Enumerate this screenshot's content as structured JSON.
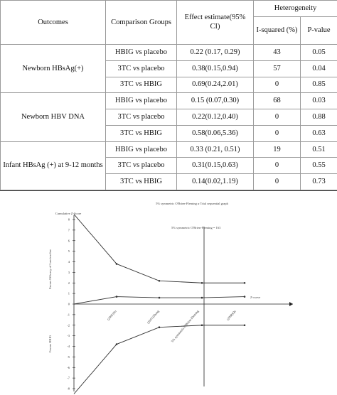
{
  "table": {
    "headers": {
      "outcomes": "Outcomes",
      "comparison": "Comparison Groups",
      "effect": "Effect estimate(95% CI)",
      "heterogeneity": "Heterogeneity",
      "i_squared": "I-squared (%)",
      "p_value": "P-value"
    },
    "groups": [
      {
        "outcome": "Newborn HBsAg(+)",
        "rows": [
          {
            "comparison": "HBIG vs placebo",
            "effect": "0.22 (0.17, 0.29)",
            "i2": "43",
            "p": "0.05"
          },
          {
            "comparison": "3TC vs placebo",
            "effect": "0.38(0.15,0.94)",
            "i2": "57",
            "p": "0.04"
          },
          {
            "comparison": "3TC vs HBIG",
            "effect": "0.69(0.24,2.01)",
            "i2": "0",
            "p": "0.85"
          }
        ]
      },
      {
        "outcome": "Newborn HBV DNA",
        "rows": [
          {
            "comparison": "HBIG vs placebo",
            "effect": "0.15 (0.07,0.30)",
            "i2": "68",
            "p": "0.03"
          },
          {
            "comparison": "3TC vs placebo",
            "effect": "0.22(0.12,0.40)",
            "i2": "0",
            "p": "0.88"
          },
          {
            "comparison": "3TC vs HBIG",
            "effect": "0.58(0.06,5.36)",
            "i2": "0",
            "p": "0.63"
          }
        ]
      },
      {
        "outcome": "Infant HBsAg (+) at 9-12 months",
        "rows": [
          {
            "comparison": "HBIG vs placebo",
            "effect": "0.33 (0.21, 0.51)",
            "i2": "19",
            "p": "0.51"
          },
          {
            "comparison": "3TC vs placebo",
            "effect": "0.31(0.15,0.63)",
            "i2": "0",
            "p": "0.55"
          },
          {
            "comparison": "3TC vs HBIG",
            "effect": "0.14(0.02,1.19)",
            "i2": "0",
            "p": "0.73"
          }
        ]
      }
    ]
  },
  "chart_data": {
    "type": "line",
    "title": "5% symmetric O'Brien-Fleming α Trial sequential graph",
    "ylabel": "Cumulative Z-Score",
    "upper_region_label": "Favors Efficacy of Lamivudine",
    "lower_region_label": "Favors HBIG",
    "boundary_label": "5% symmetric O'Brien-Fleming = 163",
    "z_curve_label": "Z-curve",
    "x_tick_labels": [
      "(2005)Xu",
      "(2007)Zhang",
      "5% symmetric O'Brien-Fleming",
      "(2008)Qu"
    ],
    "ylim": [
      -8,
      8
    ],
    "y_ticks": [
      8,
      7,
      6,
      5,
      4,
      3,
      2,
      1,
      0,
      -1,
      -2,
      -3,
      -4,
      -5,
      -6,
      -7,
      -8
    ],
    "x_positions": [
      0,
      1,
      2,
      3,
      4
    ],
    "series": [
      {
        "values": [
          8.5,
          3.8,
          2.2,
          2.0,
          2.0
        ]
      },
      {
        "values": [
          0,
          0.7,
          0.6,
          0.6,
          0.7
        ]
      },
      {
        "values": [
          -8.5,
          -3.8,
          -2.2,
          -2.0,
          -2.0
        ]
      }
    ],
    "colors": {
      "line": "#333333",
      "axis": "#222222"
    }
  }
}
